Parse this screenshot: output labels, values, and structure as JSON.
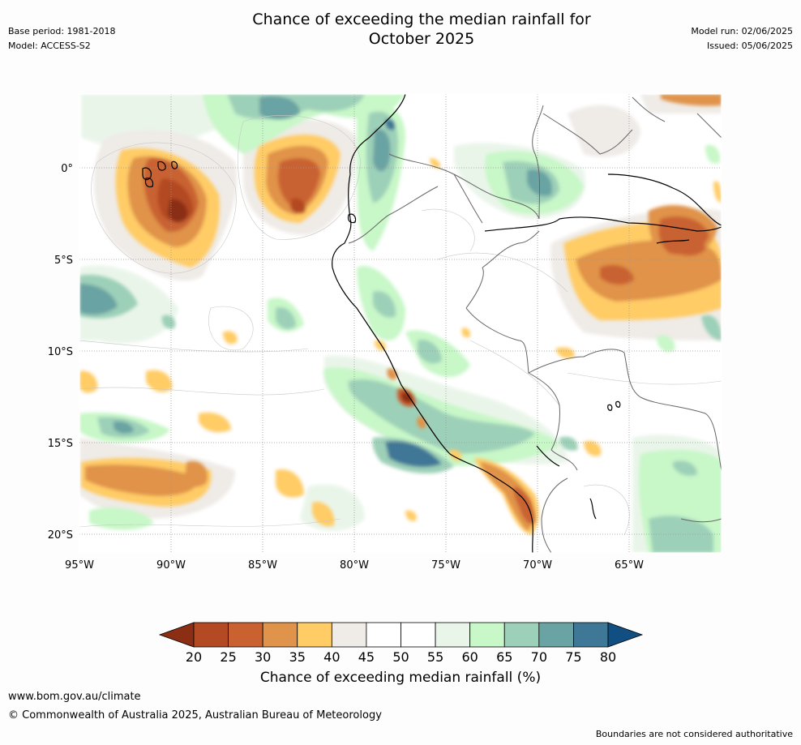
{
  "title": {
    "line1": "Chance of exceeding the median rainfall for",
    "line2": "October 2025"
  },
  "meta_left": {
    "base_period": "Base period: 1981-2018",
    "model": "Model: ACCESS-S2"
  },
  "meta_right": {
    "model_run": "Model run: 02/06/2025",
    "issued": "Issued: 05/06/2025"
  },
  "map": {
    "lon_ticks": [
      "95°W",
      "90°W",
      "85°W",
      "80°W",
      "75°W",
      "70°W",
      "65°W"
    ],
    "lat_ticks": [
      "0°",
      "5°S",
      "10°S",
      "15°S",
      "20°S"
    ],
    "lon_range": [
      -95,
      -60
    ],
    "lat_range": [
      -21,
      4
    ],
    "gridlines": true
  },
  "colorbar": {
    "title": "Chance of exceeding median rainfall (%)",
    "tick_labels": [
      "20",
      "25",
      "30",
      "35",
      "40",
      "45",
      "50",
      "55",
      "60",
      "65",
      "70",
      "75",
      "80"
    ],
    "colors": [
      "#8b2e14",
      "#b34a24",
      "#c96230",
      "#e0934a",
      "#ffcc66",
      "#efebe7",
      "#ffffff",
      "#ffffff",
      "#eaf5ea",
      "#c8f7c8",
      "#9dd0b8",
      "#6aa3a3",
      "#3f7796",
      "#114f82"
    ]
  },
  "footer": {
    "url": "www.bom.gov.au/climate",
    "copyright": "© Commonwealth of Australia 2025, Australian Bureau of Meteorology",
    "disclaimer": "Boundaries are not considered authoritative"
  }
}
